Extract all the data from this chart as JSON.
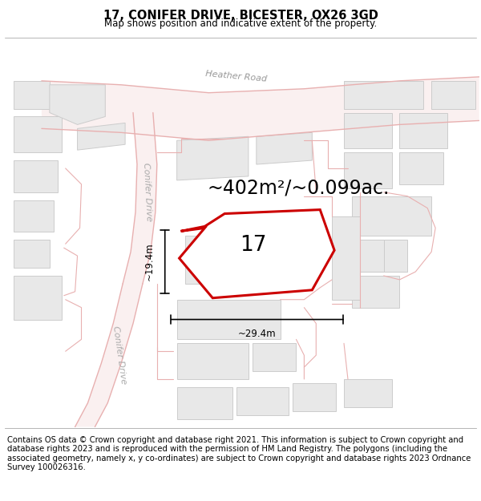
{
  "title": "17, CONIFER DRIVE, BICESTER, OX26 3GD",
  "subtitle": "Map shows position and indicative extent of the property.",
  "area_text": "~402m²/~0.099ac.",
  "number_label": "17",
  "dim_height": "~19.4m",
  "dim_width": "~29.4m",
  "footer": "Contains OS data © Crown copyright and database right 2021. This information is subject to Crown copyright and database rights 2023 and is reproduced with the permission of HM Land Registry. The polygons (including the associated geometry, namely x, y co-ordinates) are subject to Crown copyright and database rights 2023 Ordnance Survey 100026316.",
  "map_bg": "#ffffff",
  "road_color": "#e8b0b0",
  "highlight_color": "#cc0000",
  "bldg_fill": "#e8e8e8",
  "bldg_edge": "#cccccc",
  "title_fontsize": 10.5,
  "subtitle_fontsize": 8.5,
  "area_fontsize": 17,
  "dim_fontsize": 8.5,
  "road_label_fontsize": 8,
  "footer_fontsize": 7.2,
  "prop_fill": "#ffffff",
  "prop_edge": "#cc0000",
  "prop_lw": 2.2
}
